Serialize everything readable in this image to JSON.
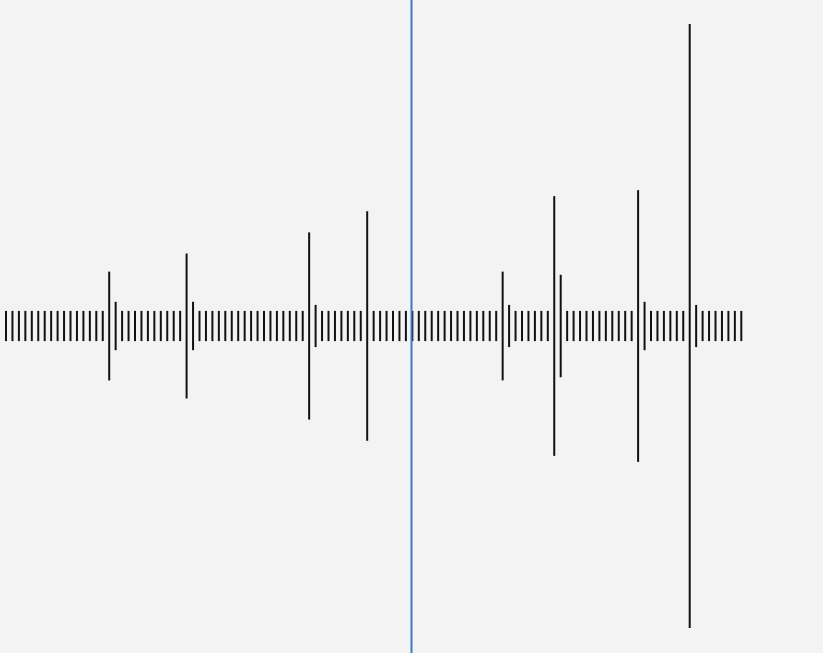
{
  "chart_data": {
    "type": "bar",
    "title": "",
    "xlabel": "",
    "ylabel": "",
    "grid": false,
    "legend": "none",
    "symmetric": true,
    "bar_color": "#111111",
    "playhead_color": "#3a78c2",
    "background": "#f3f3f3",
    "ylim": [
      0,
      1
    ],
    "xlim": [
      0,
      1
    ],
    "playhead_position": 0.5,
    "values": [
      0.05,
      0.05,
      0.05,
      0.05,
      0.05,
      0.05,
      0.05,
      0.05,
      0.05,
      0.05,
      0.05,
      0.05,
      0.05,
      0.05,
      0.05,
      0.05,
      0.18,
      0.08,
      0.05,
      0.05,
      0.05,
      0.05,
      0.05,
      0.05,
      0.05,
      0.05,
      0.05,
      0.05,
      0.24,
      0.08,
      0.05,
      0.05,
      0.05,
      0.05,
      0.05,
      0.05,
      0.05,
      0.05,
      0.05,
      0.05,
      0.05,
      0.05,
      0.05,
      0.05,
      0.05,
      0.05,
      0.05,
      0.31,
      0.07,
      0.05,
      0.05,
      0.05,
      0.05,
      0.05,
      0.05,
      0.05,
      0.38,
      0.05,
      0.05,
      0.05,
      0.05,
      0.05,
      0.05,
      0.05,
      0.05,
      0.05,
      0.05,
      0.05,
      0.05,
      0.05,
      0.05,
      0.05,
      0.05,
      0.05,
      0.05,
      0.05,
      0.05,
      0.18,
      0.07,
      0.05,
      0.05,
      0.05,
      0.05,
      0.05,
      0.05,
      0.43,
      0.17,
      0.05,
      0.05,
      0.05,
      0.05,
      0.05,
      0.05,
      0.05,
      0.05,
      0.05,
      0.05,
      0.05,
      0.45,
      0.08,
      0.05,
      0.05,
      0.05,
      0.05,
      0.05,
      0.05,
      1.0,
      0.07,
      0.05,
      0.05,
      0.05,
      0.05,
      0.05,
      0.05,
      0.05
    ]
  }
}
